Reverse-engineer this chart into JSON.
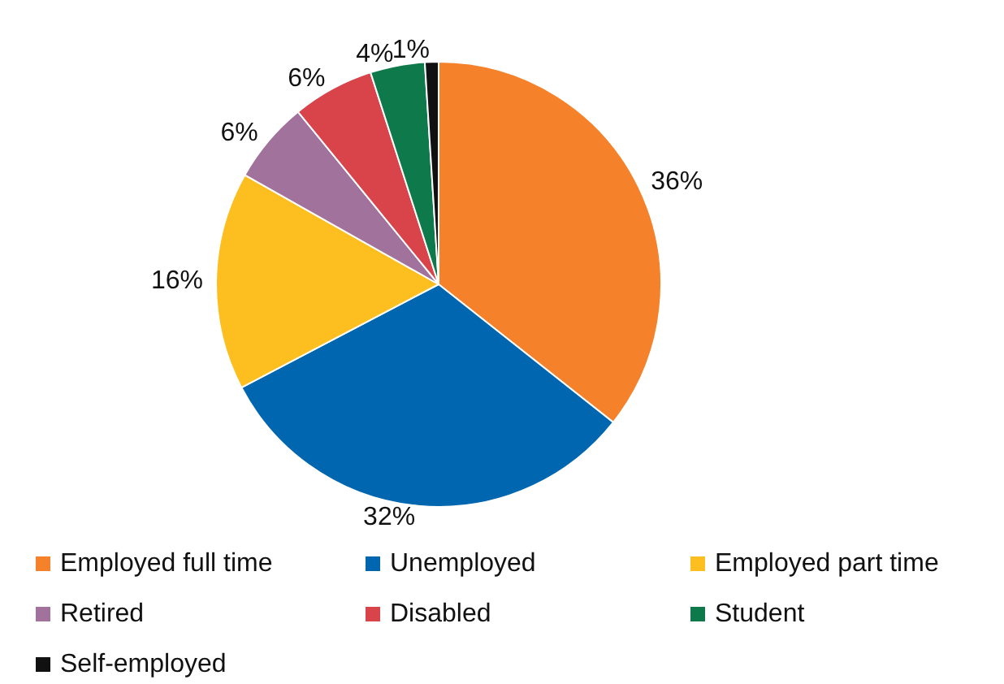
{
  "chart_data": {
    "type": "pie",
    "categories": [
      "Employed full time",
      "Unemployed",
      "Employed part time",
      "Retired",
      "Disabled",
      "Student",
      "Self-employed"
    ],
    "values": [
      36,
      32,
      16,
      6,
      6,
      4,
      1
    ],
    "value_labels": [
      "36%",
      "32%",
      "16%",
      "6%",
      "6%",
      "4%",
      "1%"
    ],
    "colors": [
      "#f5822a",
      "#0066b0",
      "#fdbf1f",
      "#a0729c",
      "#d9434a",
      "#0e7a4b",
      "#111111"
    ],
    "legend": "bottom"
  }
}
